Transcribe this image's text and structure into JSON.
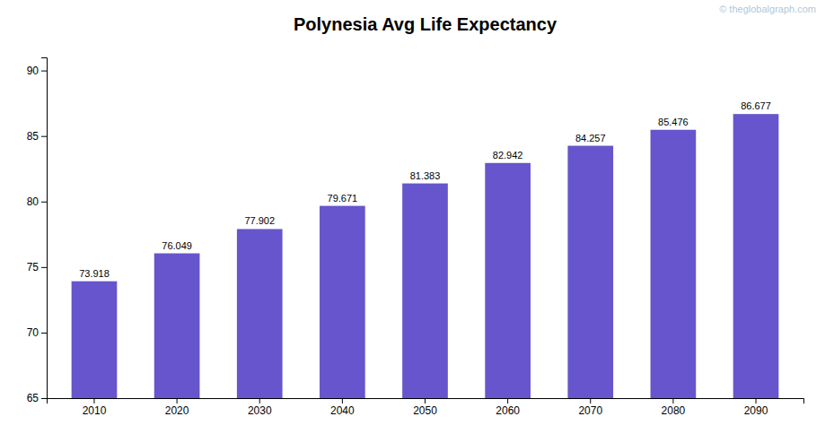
{
  "chart_data": {
    "type": "bar",
    "title": "Polynesia Avg Life Expectancy",
    "annotations": [
      "© theglobalgraph.com"
    ],
    "categories": [
      "2010",
      "2020",
      "2030",
      "2040",
      "2050",
      "2060",
      "2070",
      "2080",
      "2090"
    ],
    "values": [
      73.918,
      76.049,
      77.902,
      79.671,
      81.383,
      82.942,
      84.257,
      85.476,
      86.677
    ],
    "color": "#6655cc",
    "ylim": [
      65,
      91
    ],
    "yticks": [
      65,
      70,
      75,
      80,
      85,
      90
    ],
    "grid": false,
    "data_labels": true
  }
}
